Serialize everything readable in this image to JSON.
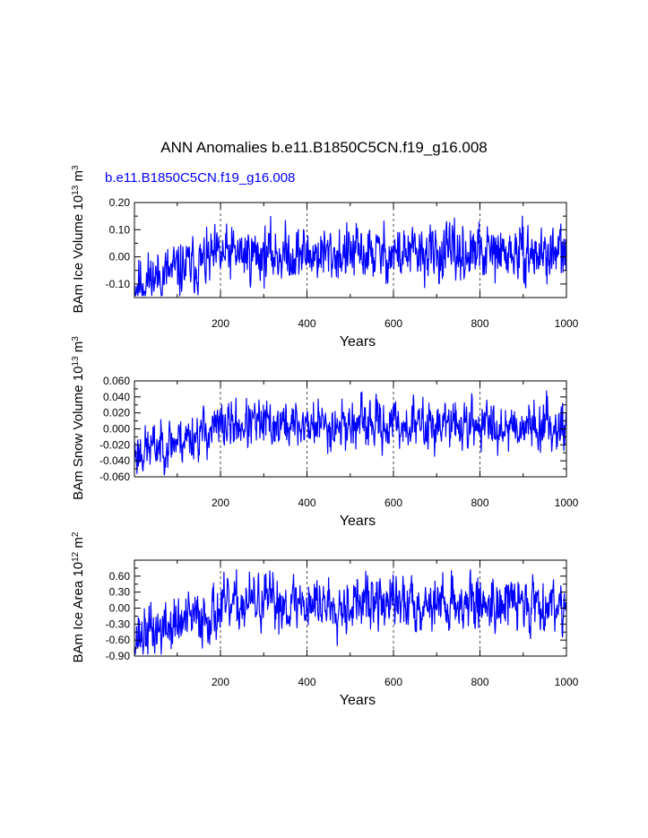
{
  "title": "ANN Anomalies b.e11.B1850C5CN.f19_g16.008",
  "case_label": "b.e11.B1850C5CN.f19_g16.008",
  "colors": {
    "series": "#0000ff",
    "axis": "#000000"
  },
  "chart_data": [
    {
      "type": "line",
      "ylabel": {
        "main": "BAm Ice Volume 10",
        "exp": "13",
        "unit": " m",
        "unit_exp": "3"
      },
      "xlabel": "Years",
      "xlim": [
        1,
        1000
      ],
      "ylim": [
        -0.15,
        0.2
      ],
      "x_ticks": [
        200,
        400,
        600,
        800,
        1000
      ],
      "x_tick_labels": [
        "200",
        "400",
        "600",
        "800",
        "1000"
      ],
      "y_ticks": [
        -0.1,
        0.0,
        0.1,
        0.2
      ],
      "y_tick_labels": [
        "-0.10",
        "0.00",
        "0.10",
        "0.20"
      ],
      "grid_x": [
        200,
        400,
        600,
        800
      ],
      "series": [
        {
          "name": "b.e11.B1850C5CN.f19_g16.008",
          "generator": {
            "seed": 11,
            "start": -0.1,
            "end": 0.01,
            "settle": 220,
            "noise": 0.047,
            "peak": 0.15
          }
        }
      ]
    },
    {
      "type": "line",
      "ylabel": {
        "main": "BAm Snow Volume 10",
        "exp": "13",
        "unit": " m",
        "unit_exp": "3"
      },
      "xlabel": "Years",
      "xlim": [
        1,
        1000
      ],
      "ylim": [
        -0.06,
        0.06
      ],
      "x_ticks": [
        200,
        400,
        600,
        800,
        1000
      ],
      "x_tick_labels": [
        "200",
        "400",
        "600",
        "800",
        "1000"
      ],
      "y_ticks": [
        -0.06,
        -0.04,
        -0.02,
        0.0,
        0.02,
        0.04,
        0.06
      ],
      "y_tick_labels": [
        "-0.060",
        "-0.040",
        "-0.020",
        "0.000",
        "0.020",
        "0.040",
        "0.060"
      ],
      "grid_x": [
        200,
        400,
        600,
        800
      ],
      "series": [
        {
          "name": "b.e11.B1850C5CN.f19_g16.008",
          "generator": {
            "seed": 23,
            "start": -0.03,
            "end": 0.005,
            "settle": 220,
            "noise": 0.014,
            "peak": 0.052
          }
        }
      ]
    },
    {
      "type": "line",
      "ylabel": {
        "main": "BAm Ice Area 10",
        "exp": "12",
        "unit": " m",
        "unit_exp": "2"
      },
      "xlabel": "Years",
      "xlim": [
        1,
        1000
      ],
      "ylim": [
        -0.9,
        0.9
      ],
      "x_ticks": [
        200,
        400,
        600,
        800,
        1000
      ],
      "x_tick_labels": [
        "200",
        "400",
        "600",
        "800",
        "1000"
      ],
      "y_ticks": [
        -0.9,
        -0.6,
        -0.3,
        0.0,
        0.3,
        0.6
      ],
      "y_tick_labels": [
        "-0.90",
        "-0.60",
        "-0.30",
        "0.00",
        "0.30",
        "0.60"
      ],
      "grid_x": [
        200,
        400,
        600,
        800
      ],
      "series": [
        {
          "name": "b.e11.B1850C5CN.f19_g16.008",
          "generator": {
            "seed": 37,
            "start": -0.55,
            "end": 0.1,
            "settle": 260,
            "noise": 0.24,
            "peak": 0.72
          }
        }
      ]
    }
  ]
}
